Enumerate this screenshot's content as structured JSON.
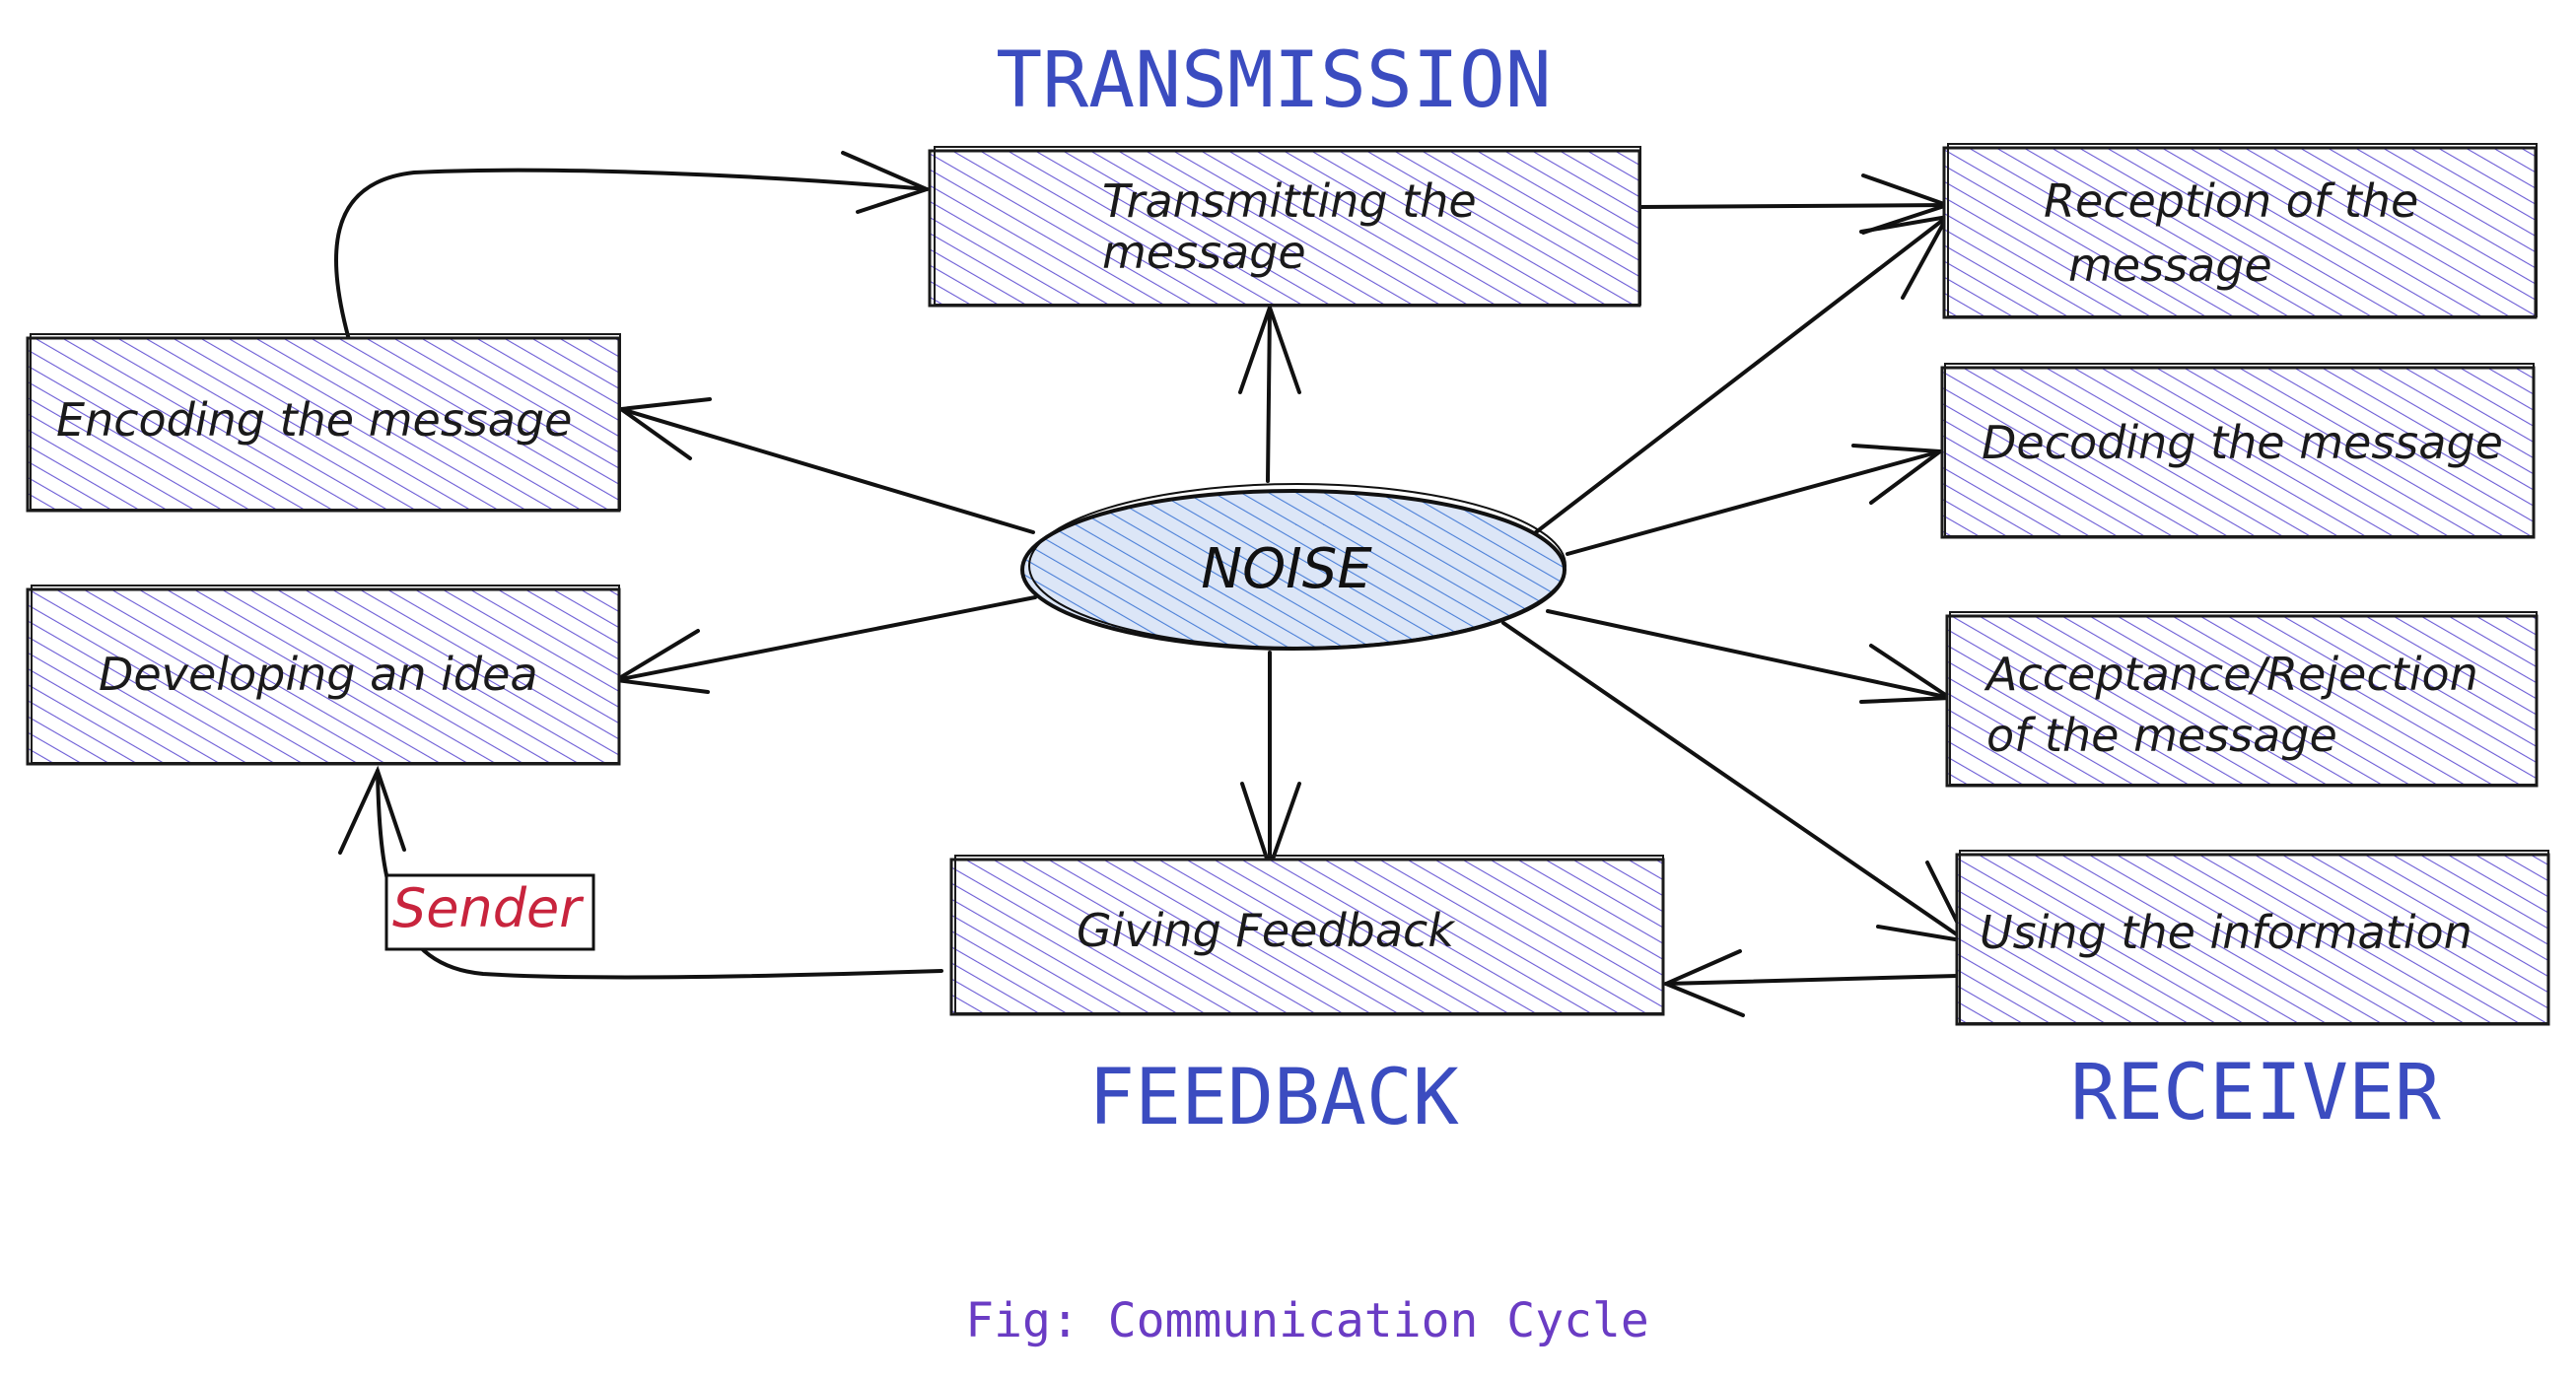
{
  "headings": {
    "transmission": "TRANSMISSION",
    "feedback": "FEEDBACK",
    "receiver": "RECEIVER"
  },
  "center": {
    "label": "NOISE"
  },
  "boxes": {
    "transmitting": [
      "Transmitting the",
      "message"
    ],
    "encoding": [
      "Encoding the message"
    ],
    "developing": [
      "Developing an idea"
    ],
    "giving_feedback": [
      "Giving Feedback"
    ],
    "reception": [
      "Reception of the",
      "message"
    ],
    "decoding": [
      "Decoding the message"
    ],
    "acceptance": [
      "Acceptance/Rejection",
      "of the message"
    ],
    "using": [
      "Using the information"
    ]
  },
  "sender_label": "Sender",
  "caption": "Fig: Communication Cycle",
  "colors": {
    "box_hatch": "#6b5bd6",
    "noise_hatch": "#4a7fd8",
    "heading": "#3b4cc0",
    "sender": "#c8243d",
    "caption": "#6a3cc4"
  }
}
